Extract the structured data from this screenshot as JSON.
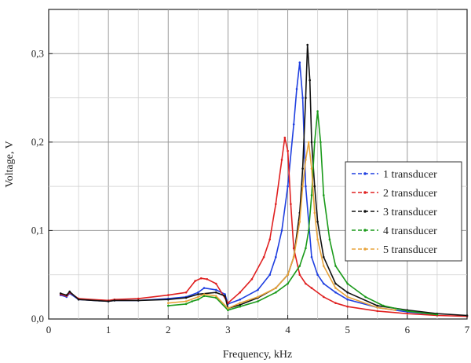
{
  "chart_data": {
    "type": "line",
    "title": "",
    "xlabel": "Frequency, kHz",
    "ylabel": "Voltage, V",
    "xlim": [
      0,
      7
    ],
    "ylim": [
      0,
      0.35
    ],
    "xticks": [
      0,
      1,
      2,
      3,
      4,
      5,
      6,
      7
    ],
    "xtick_labels": [
      "0",
      "1",
      "2",
      "3",
      "4",
      "5",
      "6",
      "7"
    ],
    "yticks": [
      0,
      0.1,
      0.2,
      0.3
    ],
    "ytick_labels": [
      "0,0",
      "0,1",
      "0,2",
      "0,3"
    ],
    "grid": true,
    "legend_position": "right",
    "series": [
      {
        "name": "1 transducer",
        "color": "#1f3fe0",
        "x": [
          0.2,
          0.3,
          0.35,
          0.5,
          1.0,
          1.1,
          1.5,
          2.0,
          2.3,
          2.5,
          2.6,
          2.8,
          2.95,
          3.0,
          3.2,
          3.5,
          3.7,
          3.8,
          3.9,
          4.0,
          4.1,
          4.15,
          4.2,
          4.25,
          4.3,
          4.4,
          4.5,
          4.6,
          4.8,
          5.0,
          5.5,
          6.0,
          6.5
        ],
        "y": [
          0.027,
          0.025,
          0.029,
          0.022,
          0.02,
          0.021,
          0.021,
          0.023,
          0.025,
          0.03,
          0.035,
          0.033,
          0.028,
          0.017,
          0.022,
          0.033,
          0.05,
          0.07,
          0.1,
          0.15,
          0.22,
          0.26,
          0.29,
          0.25,
          0.15,
          0.07,
          0.05,
          0.04,
          0.03,
          0.022,
          0.013,
          0.008,
          0.005
        ]
      },
      {
        "name": "2 transducer",
        "color": "#e02020",
        "x": [
          0.2,
          0.3,
          0.35,
          0.5,
          1.0,
          1.1,
          1.5,
          2.0,
          2.3,
          2.45,
          2.55,
          2.65,
          2.8,
          3.0,
          3.2,
          3.4,
          3.6,
          3.7,
          3.8,
          3.9,
          3.95,
          4.0,
          4.05,
          4.1,
          4.2,
          4.3,
          4.4,
          4.6,
          4.8,
          5.0,
          5.5,
          6.0,
          6.5,
          7.0
        ],
        "y": [
          0.028,
          0.026,
          0.03,
          0.023,
          0.021,
          0.022,
          0.023,
          0.027,
          0.03,
          0.043,
          0.046,
          0.045,
          0.04,
          0.018,
          0.03,
          0.045,
          0.07,
          0.09,
          0.13,
          0.18,
          0.205,
          0.19,
          0.13,
          0.08,
          0.05,
          0.04,
          0.035,
          0.025,
          0.018,
          0.014,
          0.009,
          0.006,
          0.004,
          0.003
        ]
      },
      {
        "name": "3 transducer",
        "color": "#111111",
        "x": [
          0.2,
          0.3,
          0.35,
          0.5,
          1.0,
          1.1,
          1.5,
          2.0,
          2.3,
          2.5,
          2.8,
          2.95,
          3.0,
          3.2,
          3.5,
          3.8,
          4.0,
          4.1,
          4.2,
          4.25,
          4.3,
          4.33,
          4.37,
          4.4,
          4.45,
          4.5,
          4.6,
          4.8,
          5.0,
          5.5,
          6.0,
          6.5,
          7.0
        ],
        "y": [
          0.029,
          0.027,
          0.031,
          0.022,
          0.02,
          0.021,
          0.021,
          0.022,
          0.024,
          0.028,
          0.03,
          0.026,
          0.012,
          0.016,
          0.024,
          0.035,
          0.05,
          0.07,
          0.12,
          0.17,
          0.25,
          0.31,
          0.27,
          0.2,
          0.15,
          0.11,
          0.07,
          0.04,
          0.03,
          0.015,
          0.01,
          0.006,
          0.004
        ]
      },
      {
        "name": "4 transducer",
        "color": "#1a9a1a",
        "x": [
          2.0,
          2.3,
          2.4,
          2.5,
          2.6,
          2.8,
          3.0,
          3.2,
          3.5,
          3.8,
          4.0,
          4.2,
          4.3,
          4.35,
          4.4,
          4.45,
          4.5,
          4.55,
          4.6,
          4.7,
          4.8,
          5.0,
          5.3,
          5.6,
          6.0,
          6.5
        ],
        "y": [
          0.015,
          0.017,
          0.02,
          0.022,
          0.026,
          0.024,
          0.01,
          0.014,
          0.02,
          0.03,
          0.04,
          0.06,
          0.08,
          0.1,
          0.14,
          0.2,
          0.235,
          0.2,
          0.14,
          0.09,
          0.06,
          0.04,
          0.025,
          0.015,
          0.009,
          0.005
        ]
      },
      {
        "name": "5 transducer",
        "color": "#e8a33a",
        "x": [
          2.0,
          2.3,
          2.5,
          2.6,
          2.8,
          3.0,
          3.2,
          3.5,
          3.8,
          4.0,
          4.1,
          4.2,
          4.25,
          4.3,
          4.35,
          4.4,
          4.45,
          4.5,
          4.6,
          4.8,
          5.0,
          5.5,
          5.8
        ],
        "y": [
          0.018,
          0.02,
          0.025,
          0.028,
          0.026,
          0.012,
          0.018,
          0.025,
          0.035,
          0.05,
          0.07,
          0.11,
          0.15,
          0.18,
          0.2,
          0.17,
          0.12,
          0.09,
          0.06,
          0.035,
          0.025,
          0.013,
          0.01
        ]
      }
    ]
  }
}
